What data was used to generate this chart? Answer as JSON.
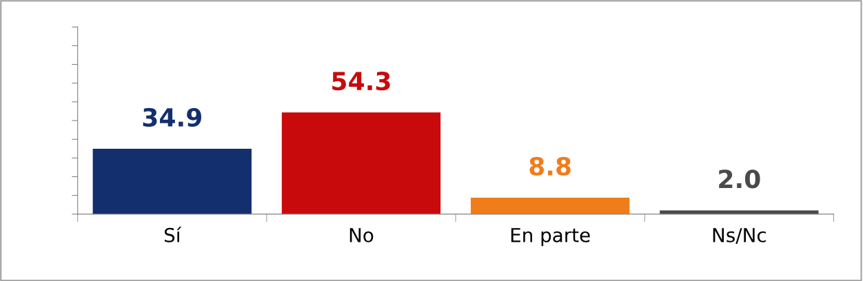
{
  "chart_data": {
    "type": "bar",
    "categories": [
      "Sí",
      "No",
      "En parte",
      "Ns/Nc"
    ],
    "values": [
      34.9,
      54.3,
      8.8,
      2.0
    ],
    "value_labels": [
      "34.9",
      "54.3",
      "8.8",
      "2.0"
    ],
    "colors": [
      "#142f6e",
      "#c80a0c",
      "#f07d1a",
      "#4a4a4a"
    ],
    "ylim": [
      0,
      100
    ],
    "yticks": [
      {
        "value": 0,
        "label": null
      },
      {
        "value": 10,
        "label": null
      },
      {
        "value": 20,
        "label": null
      },
      {
        "value": 30,
        "label": null
      },
      {
        "value": 40,
        "label": null
      },
      {
        "value": 50,
        "label": null
      },
      {
        "value": 60,
        "label": null
      },
      {
        "value": 70,
        "label": null
      },
      {
        "value": 80,
        "label": null
      },
      {
        "value": 90,
        "label": null
      },
      {
        "value": 100,
        "label": null
      }
    ],
    "grid": false,
    "legend": false
  }
}
